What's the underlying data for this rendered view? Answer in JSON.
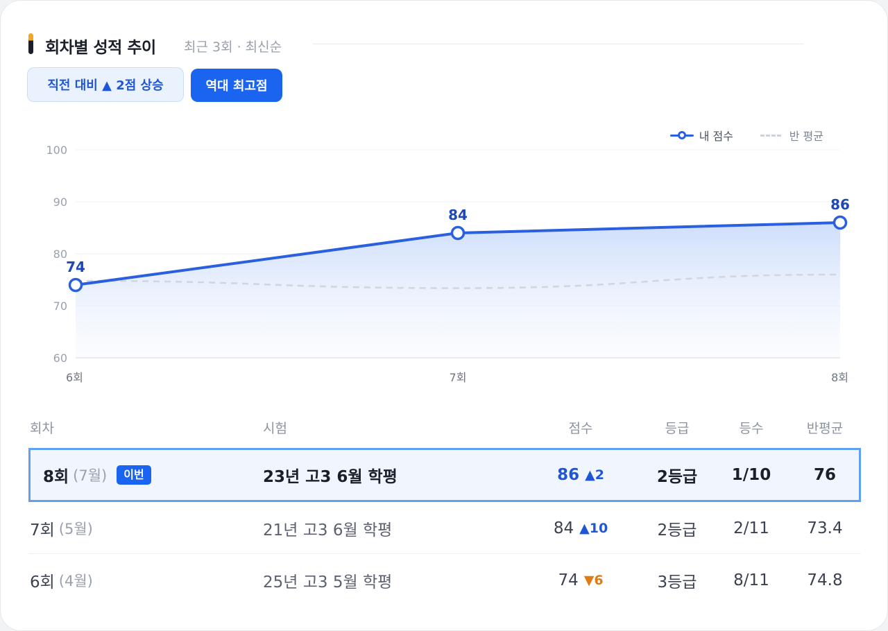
{
  "header": {
    "title": "회차별 성적 추이",
    "subtitle": "최근 3회 · 최신순"
  },
  "badges": {
    "change": "직전 대비 ▲ 2점 상승",
    "best": "역대 최고점"
  },
  "legend": {
    "mine": "내 점수",
    "avg": "반 평균"
  },
  "colors": {
    "mine_line": "#2a5fe0",
    "avg_line": "#d0d5de",
    "accent": "#1a64f0",
    "down": "#e07a12"
  },
  "chart_data": {
    "type": "line",
    "x": [
      "6회",
      "7회",
      "8회"
    ],
    "ylim": [
      60,
      100
    ],
    "yticks": [
      100,
      90,
      80,
      70,
      60
    ],
    "grid": true,
    "legend_position": "top-right",
    "series": [
      {
        "name": "내 점수",
        "values": [
          74,
          84,
          86
        ],
        "data_labels": [
          "74",
          "84",
          "86"
        ]
      },
      {
        "name": "반 평균",
        "values": [
          74.8,
          73.4,
          76
        ]
      }
    ]
  },
  "table": {
    "headers": {
      "round": "회차",
      "exam": "시험",
      "score": "점수",
      "grade": "등급",
      "rank": "등수",
      "avg": "반평균"
    },
    "rows": [
      {
        "round": "8회",
        "month": "(7월)",
        "tag": "이번",
        "exam": "23년 고3 6월 학평",
        "score": "86",
        "delta_dir": "up",
        "delta": "▲2",
        "grade": "2등급",
        "rank": "1/10",
        "avg": "76"
      },
      {
        "round": "7회",
        "month": "(5월)",
        "tag": "",
        "exam": "21년 고3 6월 학평",
        "score": "84",
        "delta_dir": "up",
        "delta": "▲10",
        "grade": "2등급",
        "rank": "2/11",
        "avg": "73.4"
      },
      {
        "round": "6회",
        "month": "(4월)",
        "tag": "",
        "exam": "25년 고3 5월 학평",
        "score": "74",
        "delta_dir": "down",
        "delta": "▼6",
        "grade": "3등급",
        "rank": "8/11",
        "avg": "74.8"
      }
    ]
  }
}
